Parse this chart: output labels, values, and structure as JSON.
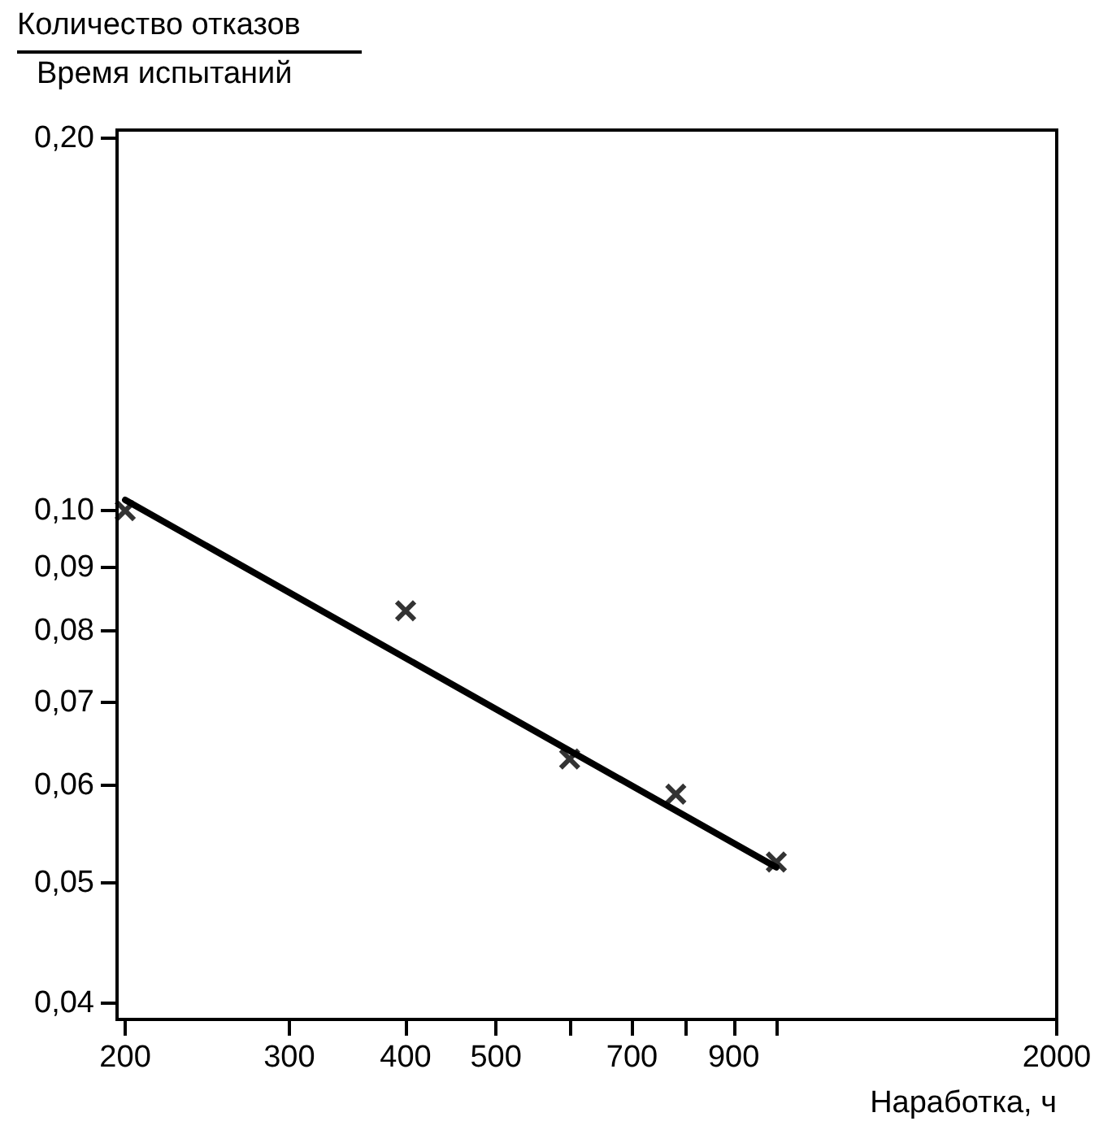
{
  "chart_data": {
    "type": "scatter",
    "ylabel": "Количество отказов\nВремя испытаний",
    "xlabel": "Наработка, ч",
    "log": "xy",
    "grid": false,
    "marker": "cross",
    "x": [
      200,
      400,
      600,
      780,
      1000
    ],
    "series": [
      {
        "color": "#000000",
        "values": [
          0.1,
          0.083,
          0.063,
          0.059,
          0.052
        ]
      },
      {
        "type": "line",
        "color": "#000000",
        "marker": "none",
        "line_style": "solid",
        "x": [
          200,
          1000
        ],
        "values": [
          0.102,
          0.0515
        ]
      }
    ],
    "xlim": [
      196,
      2000
    ],
    "ylim": [
      0.0388,
      0.203
    ],
    "xticks": [
      200,
      300,
      400,
      500,
      {
        "value": 600,
        "label": null
      },
      700,
      {
        "value": 800,
        "label": null
      },
      900,
      {
        "value": 1000,
        "label": null
      },
      2000
    ],
    "yticks": [
      {
        "value": 0.04,
        "label": "0,04"
      },
      {
        "value": 0.05,
        "label": "0,05"
      },
      {
        "value": 0.06,
        "label": "0,06"
      },
      {
        "value": 0.07,
        "label": "0,07"
      },
      {
        "value": 0.08,
        "label": "0,08"
      },
      {
        "value": 0.09,
        "label": "0,09"
      },
      {
        "value": 0.1,
        "label": "0,10"
      },
      {
        "value": 0.2,
        "label": "0,20"
      }
    ]
  }
}
